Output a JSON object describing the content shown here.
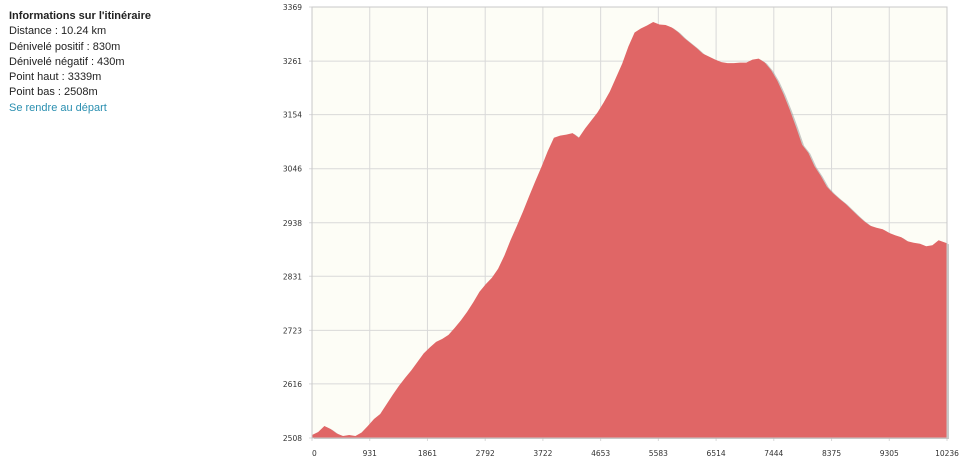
{
  "info": {
    "title": "Informations sur l'itinéraire",
    "distance": "Distance : 10.24 km",
    "gain": "Dénivelé positif : 830m",
    "loss": "Dénivelé négatif : 430m",
    "high": "Point haut : 3339m",
    "low": "Point bas : 2508m",
    "link": "Se rendre au départ"
  },
  "chart_data": {
    "type": "area",
    "title": "",
    "xlabel": "",
    "ylabel": "",
    "xlim": [
      0,
      10236
    ],
    "ylim": [
      2508,
      3369
    ],
    "grid": true,
    "fill_color": "#e06666",
    "plot_background": "#fdfdf6",
    "grid_color": "#d9d9d9",
    "x_ticks": [
      "0",
      "931",
      "1861",
      "2792",
      "3722",
      "4653",
      "5583",
      "6514",
      "7444",
      "8375",
      "9305",
      "10236"
    ],
    "y_ticks": [
      "2508",
      "2616",
      "2723",
      "2831",
      "2938",
      "3046",
      "3154",
      "3261",
      "3369"
    ],
    "x": [
      0,
      100,
      200,
      300,
      400,
      500,
      600,
      700,
      800,
      900,
      1000,
      1100,
      1200,
      1300,
      1400,
      1500,
      1600,
      1700,
      1800,
      1900,
      2000,
      2100,
      2200,
      2300,
      2400,
      2500,
      2600,
      2700,
      2800,
      2900,
      3000,
      3100,
      3200,
      3300,
      3400,
      3500,
      3600,
      3700,
      3800,
      3900,
      4000,
      4100,
      4200,
      4300,
      4400,
      4500,
      4600,
      4700,
      4800,
      4900,
      5000,
      5100,
      5200,
      5300,
      5400,
      5500,
      5600,
      5700,
      5800,
      5900,
      6000,
      6100,
      6200,
      6300,
      6400,
      6500,
      6600,
      6700,
      6800,
      6900,
      7000,
      7100,
      7200,
      7300,
      7400,
      7500,
      7600,
      7700,
      7800,
      7900,
      8000,
      8100,
      8200,
      8300,
      8400,
      8500,
      8600,
      8700,
      8800,
      8900,
      9000,
      9100,
      9200,
      9300,
      9400,
      9500,
      9600,
      9700,
      9800,
      9900,
      10000,
      10100,
      10236
    ],
    "y": [
      2514,
      2520,
      2532,
      2526,
      2517,
      2512,
      2514,
      2512,
      2519,
      2532,
      2546,
      2556,
      2575,
      2594,
      2612,
      2628,
      2643,
      2660,
      2677,
      2689,
      2700,
      2706,
      2714,
      2728,
      2743,
      2760,
      2779,
      2800,
      2815,
      2828,
      2846,
      2872,
      2903,
      2931,
      2960,
      2991,
      3021,
      3050,
      3081,
      3108,
      3112,
      3114,
      3117,
      3108,
      3126,
      3142,
      3158,
      3178,
      3200,
      3228,
      3256,
      3290,
      3318,
      3326,
      3332,
      3339,
      3334,
      3333,
      3328,
      3319,
      3307,
      3297,
      3287,
      3276,
      3270,
      3264,
      3259,
      3257,
      3257,
      3258,
      3258,
      3264,
      3266,
      3258,
      3243,
      3222,
      3195,
      3164,
      3130,
      3094,
      3078,
      3051,
      3032,
      3010,
      2997,
      2986,
      2976,
      2964,
      2952,
      2941,
      2932,
      2928,
      2925,
      2918,
      2913,
      2909,
      2901,
      2898,
      2896,
      2891,
      2893,
      2903,
      2897
    ]
  }
}
